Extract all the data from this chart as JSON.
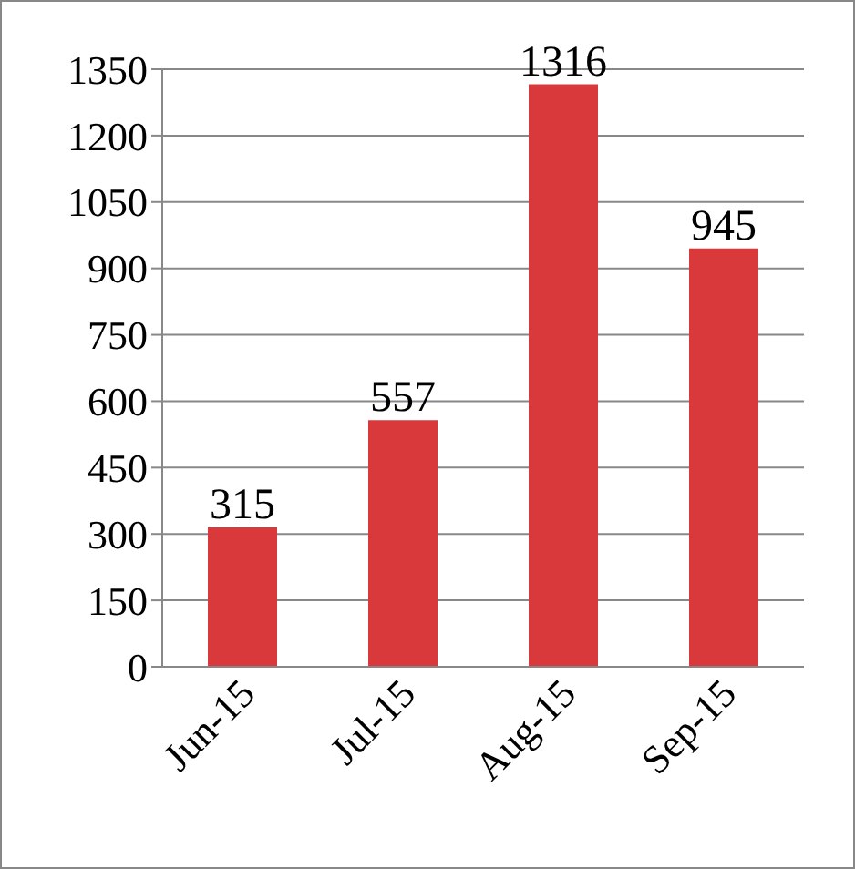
{
  "chart_data": {
    "type": "bar",
    "categories": [
      "Jun-15",
      "Jul-15",
      "Aug-15",
      "Sep-15"
    ],
    "values": [
      315,
      557,
      1316,
      945
    ],
    "color": "#d9393b",
    "ylim": [
      0,
      1350
    ],
    "yticks": [
      0,
      150,
      300,
      450,
      600,
      750,
      900,
      1050,
      1200,
      1350
    ],
    "grid": "y",
    "data_labels": true
  }
}
